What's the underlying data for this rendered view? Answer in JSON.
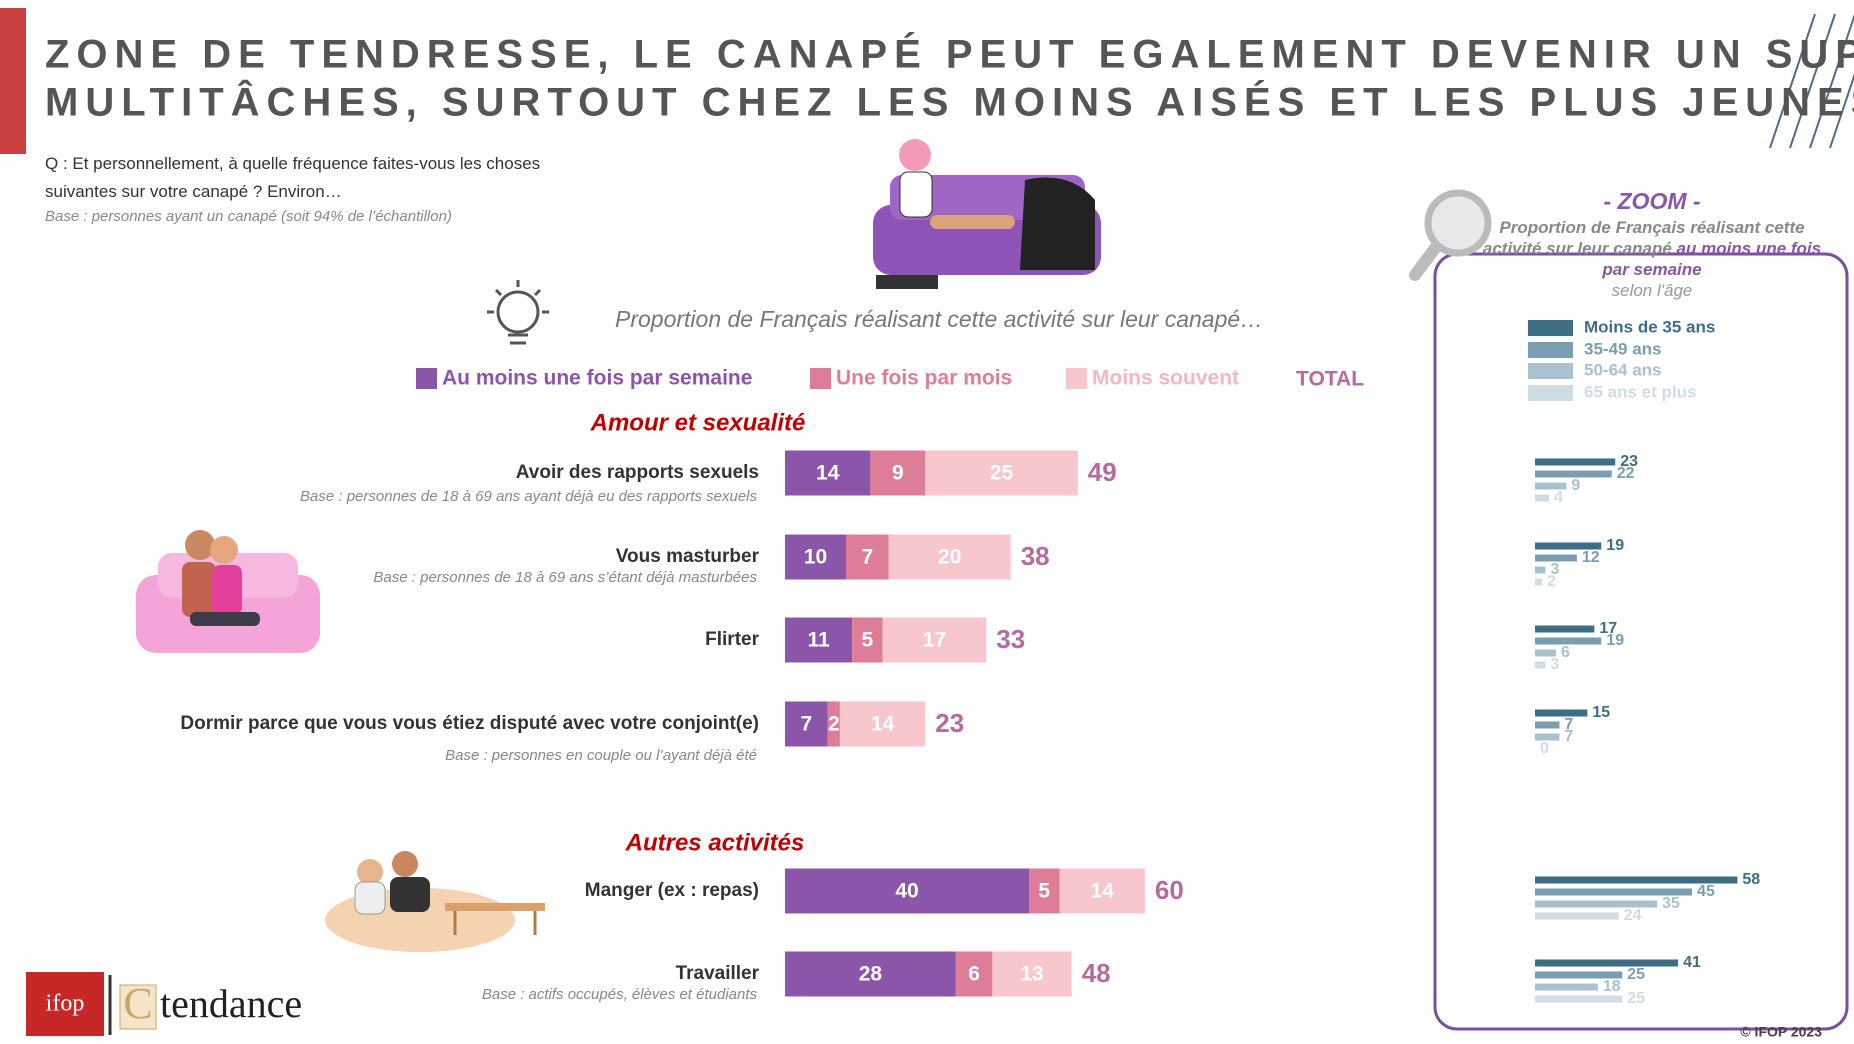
{
  "header": {
    "title": [
      "ZONE DE TENDRESSE, LE CANAPÉ PEUT EGALEMENT DEVENIR UN SUPPORT",
      "MULTITÂCHES, SURTOUT CHEZ LES MOINS AISÉS ET LES PLUS JEUNES"
    ],
    "question": "Q : Et personnellement, à quelle fréquence faites-vous les choses suivantes sur votre canapé ? Environ…",
    "base": "Base : personnes ayant un canapé (soit 94% de l’échantillon)"
  },
  "chart_data": [
    {
      "type": "bar",
      "stacked": true,
      "orientation": "horizontal",
      "subtitle": "Proportion de Français réalisant cette activité sur leur canapé…",
      "group_labels": [
        "Amour et sexualité",
        "Autres activités"
      ],
      "categories": [
        "Avoir des rapports sexuels",
        "Vous masturber",
        "Flirter",
        "Dormir parce que vous vous étiez disputé avec votre conjoint(e)",
        "Manger (ex : repas)",
        "Travailler"
      ],
      "bases": [
        "Base : personnes de 18 à 69 ans ayant déjà eu des rapports sexuels",
        "Base : personnes de 18 à 69 ans s’étant déjà masturbées",
        null,
        "Base : personnes en couple ou l’ayant déjà été",
        null,
        "Base : actifs occupés, élèves et étudiants"
      ],
      "series": [
        {
          "name": "Au moins une fois par semaine",
          "color": "#8b55a9",
          "values": [
            14,
            10,
            11,
            7,
            40,
            28
          ]
        },
        {
          "name": "Une fois par mois",
          "color": "#de7d98",
          "values": [
            9,
            7,
            5,
            2,
            5,
            6
          ]
        },
        {
          "name": "Moins souvent",
          "color": "#f8c6cd",
          "values": [
            25,
            20,
            17,
            14,
            14,
            13
          ]
        }
      ],
      "total_label": "TOTAL",
      "total_color": "#b46ba0",
      "totals": [
        49,
        38,
        33,
        23,
        60,
        48
      ]
    },
    {
      "type": "bar",
      "orientation": "horizontal",
      "title": "- ZOOM -",
      "description": "Proportion de Français réalisant cette activité sur leur canapé",
      "description_highlight": "au moins une fois par semaine",
      "description_end": "selon l'âge",
      "series": [
        {
          "name": "Moins de 35 ans",
          "color": "#3e6e85",
          "values": [
            23,
            19,
            17,
            15,
            58,
            41
          ]
        },
        {
          "name": "35-49 ans",
          "color": "#7a9db0",
          "values": [
            22,
            12,
            19,
            7,
            45,
            25
          ]
        },
        {
          "name": "50-64 ans",
          "color": "#a9c0cd",
          "values": [
            9,
            3,
            6,
            7,
            35,
            18
          ]
        },
        {
          "name": "65 ans et plus",
          "color": "#cfdce4",
          "values": [
            4,
            2,
            3,
            0,
            24,
            25
          ]
        }
      ]
    }
  ],
  "footer": {
    "logo_ifop": "ifop",
    "logo_c": "C",
    "logo_tendance": "tendance",
    "copyright": "© IFOP 2023"
  }
}
